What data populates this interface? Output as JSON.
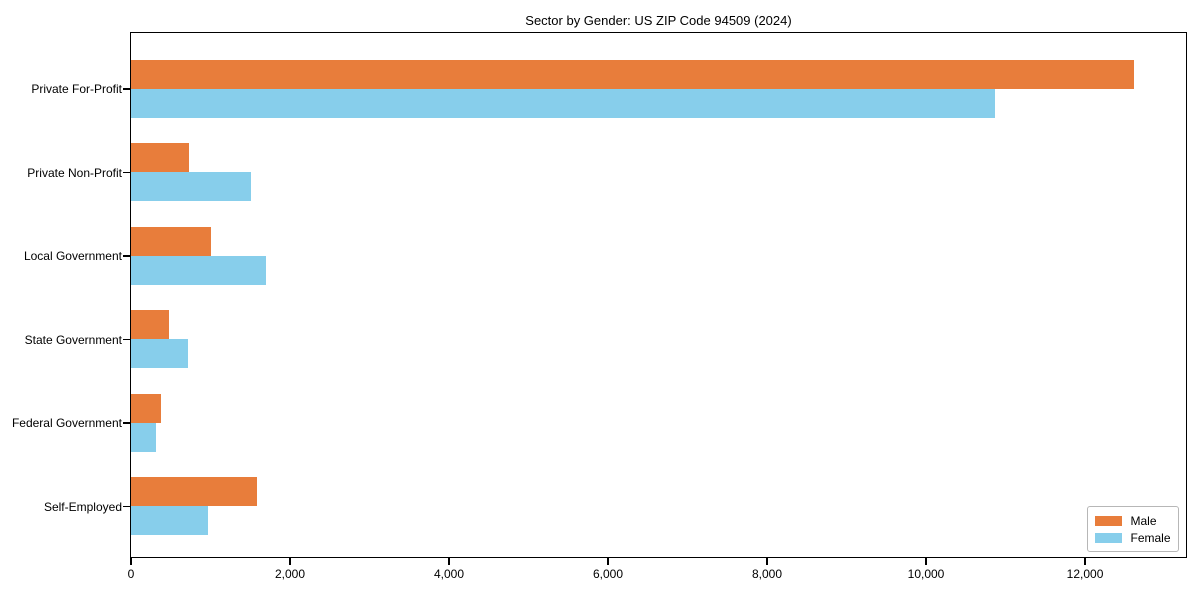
{
  "chart_data": {
    "type": "bar",
    "orientation": "horizontal",
    "title": "Sector by Gender: US ZIP Code 94509 (2024)",
    "categories": [
      "Private For-Profit",
      "Private Non-Profit",
      "Local Government",
      "State Government",
      "Federal Government",
      "Self-Employed"
    ],
    "series": [
      {
        "name": "Male",
        "color": "#e87d3b",
        "values": [
          12620,
          730,
          1010,
          480,
          380,
          1590
        ]
      },
      {
        "name": "Female",
        "color": "#87ceeb",
        "values": [
          10870,
          1510,
          1700,
          720,
          310,
          970
        ]
      }
    ],
    "xlabel": "",
    "ylabel": "",
    "xlim": [
      0,
      13270
    ],
    "xticks": [
      0,
      2000,
      4000,
      6000,
      8000,
      10000,
      12000
    ],
    "xtick_labels": [
      "0",
      "2,000",
      "4,000",
      "6,000",
      "8,000",
      "10,000",
      "12,000"
    ],
    "grid": false,
    "legend": {
      "position": "lower right"
    },
    "colors": {
      "spine": "#000000",
      "text": "#000000",
      "legend_border": "#b7b7b7",
      "background": "#ffffff"
    }
  }
}
